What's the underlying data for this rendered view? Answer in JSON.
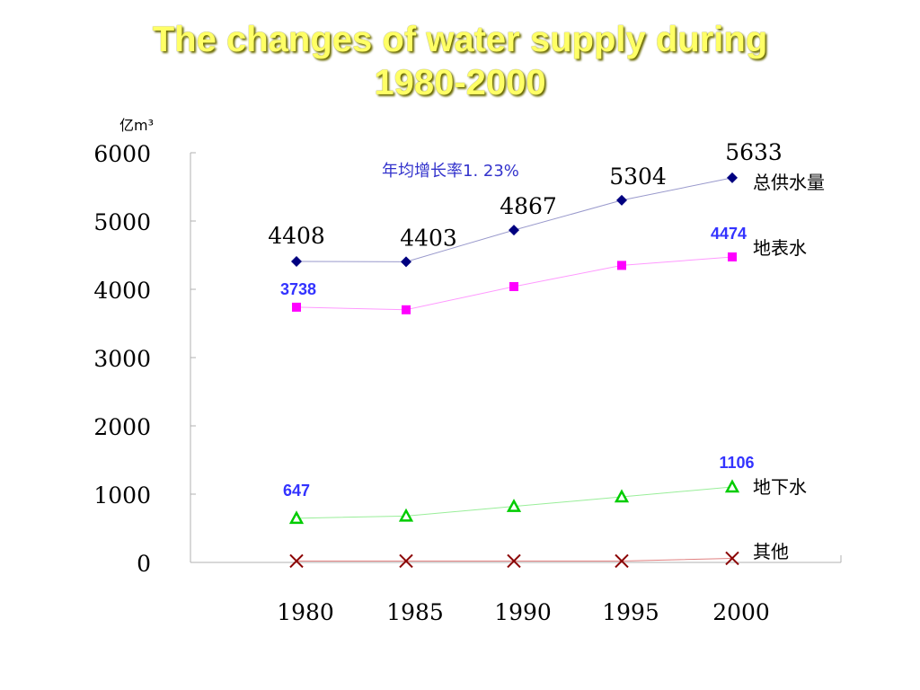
{
  "title_line1": "The changes of water supply during",
  "title_line2": "1980-2000",
  "chart_data": {
    "type": "line",
    "title": "The changes of water supply during 1980-2000",
    "unit_label": "亿m³",
    "x": [
      "1980",
      "1985",
      "1990",
      "1995",
      "2000"
    ],
    "ylim": [
      0,
      6000
    ],
    "yticks": [
      "0",
      "1000",
      "2000",
      "3000",
      "4000",
      "5000",
      "6000"
    ],
    "annotation": "年均增长率1. 23%",
    "series": [
      {
        "name": "总供水量",
        "values": [
          4408,
          4403,
          4867,
          5304,
          5633
        ],
        "marker": "diamond",
        "color": "#000080",
        "line_color": "#9999cc",
        "labels": [
          "4408",
          "4403",
          "4867",
          "5304",
          "5633"
        ]
      },
      {
        "name": "地表水",
        "values": [
          3738,
          3700,
          4040,
          4350,
          4474
        ],
        "marker": "square",
        "color": "#ff00ff",
        "line_color": "#ff99ff",
        "labels": [
          "3738",
          null,
          null,
          null,
          "4474"
        ]
      },
      {
        "name": "地下水",
        "values": [
          647,
          680,
          820,
          960,
          1106
        ],
        "marker": "triangle",
        "color": "#00cc00",
        "line_color": "#99ee99",
        "labels": [
          "647",
          null,
          null,
          null,
          "1106"
        ]
      },
      {
        "name": "其他",
        "values": [
          20,
          20,
          20,
          20,
          60
        ],
        "marker": "x",
        "color": "#8b0000",
        "line_color": "#e08080",
        "labels": [
          null,
          null,
          null,
          null,
          null
        ]
      }
    ]
  }
}
